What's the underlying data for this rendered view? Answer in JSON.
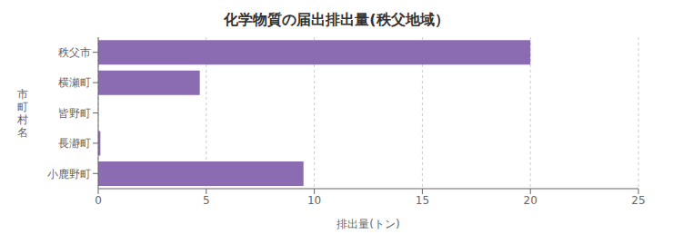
{
  "chart_data": {
    "type": "bar",
    "orientation": "horizontal",
    "title": "化学物質の届出排出量(秩父地域）",
    "categories": [
      "秩父市",
      "横瀬町",
      "皆野町",
      "長瀞町",
      "小鹿野町"
    ],
    "values": [
      20.0,
      4.7,
      0.0,
      0.1,
      9.5
    ],
    "color": "#8b6bb1",
    "xlabel": "排出量(トン)",
    "ylabel": "市\n町\n村\n名",
    "xlim": [
      0,
      25
    ],
    "xticks": [
      0,
      5,
      10,
      15,
      20,
      25
    ],
    "grid": true
  }
}
